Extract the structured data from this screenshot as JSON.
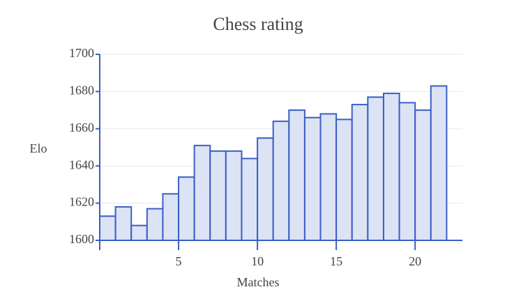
{
  "chart_data": {
    "type": "bar",
    "title": "Chess rating",
    "x_label": "Matches",
    "y_label": "Elo",
    "x": [
      0.5,
      1.5,
      2.5,
      3.5,
      4.5,
      5.5,
      6.5,
      7.5,
      8.5,
      9.5,
      10.5,
      11.5,
      12.5,
      13.5,
      14.5,
      15.5,
      16.5,
      17.5,
      18.5,
      19.5,
      20.5,
      21.5
    ],
    "values": [
      1613,
      1618,
      1608,
      1617,
      1625,
      1634,
      1651,
      1648,
      1648,
      1644,
      1655,
      1664,
      1670,
      1666,
      1668,
      1665,
      1673,
      1677,
      1679,
      1674,
      1670,
      1683
    ],
    "color": "#dbe3f5",
    "edge_color": "#3a5fc4",
    "xlim": [
      0,
      23
    ],
    "xticks": [
      5,
      10,
      15,
      20
    ],
    "ylim": [
      1600,
      1700
    ],
    "yticks": [
      1600,
      1620,
      1640,
      1660,
      1680,
      1700
    ],
    "grid": true
  }
}
